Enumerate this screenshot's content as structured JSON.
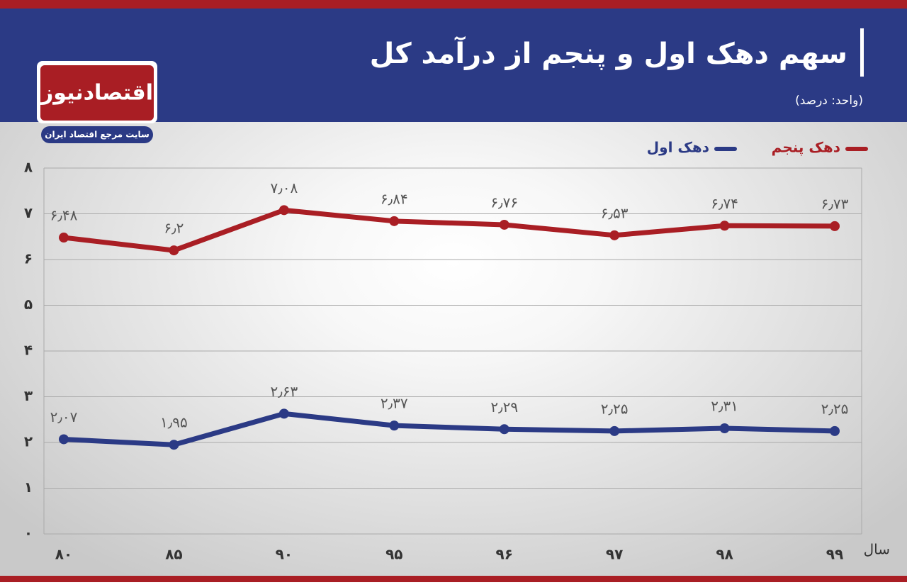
{
  "logo": {
    "name": "اقتصادنیوز",
    "tagline": "سایت مرجع اقتصاد ایران"
  },
  "chart_data": {
    "type": "line",
    "title": "سهم دهک اول و پنجم از درآمد کل",
    "subtitle": "(واحد: درصد)",
    "x_label": "سال",
    "categories": [
      "۸۰",
      "۸۵",
      "۹۰",
      "۹۵",
      "۹۶",
      "۹۷",
      "۹۸",
      "۹۹"
    ],
    "series": [
      {
        "name": "دهک پنجم",
        "color": "#a91e24",
        "values": [
          6.48,
          6.2,
          7.08,
          6.84,
          6.76,
          6.53,
          6.74,
          6.73
        ],
        "value_labels": [
          "۶٫۴۸",
          "۶٫۲",
          "۷٫۰۸",
          "۶٫۸۴",
          "۶٫۷۶",
          "۶٫۵۳",
          "۶٫۷۴",
          "۶٫۷۳"
        ]
      },
      {
        "name": "دهک اول",
        "color": "#2b3a85",
        "values": [
          2.07,
          1.95,
          2.63,
          2.37,
          2.29,
          2.25,
          2.31,
          2.25
        ],
        "value_labels": [
          "۲٫۰۷",
          "۱٫۹۵",
          "۲٫۶۳",
          "۲٫۳۷",
          "۲٫۲۹",
          "۲٫۲۵",
          "۲٫۳۱",
          "۲٫۲۵"
        ]
      }
    ],
    "ylim": [
      0,
      8
    ],
    "yticks": [
      {
        "value": 0,
        "label": "۰"
      },
      {
        "value": 1,
        "label": "۱"
      },
      {
        "value": 2,
        "label": "۲"
      },
      {
        "value": 3,
        "label": "۳"
      },
      {
        "value": 4,
        "label": "۴"
      },
      {
        "value": 5,
        "label": "۵"
      },
      {
        "value": 6,
        "label": "۶"
      },
      {
        "value": 7,
        "label": "۷"
      },
      {
        "value": 8,
        "label": "۸"
      }
    ],
    "grid": true
  }
}
